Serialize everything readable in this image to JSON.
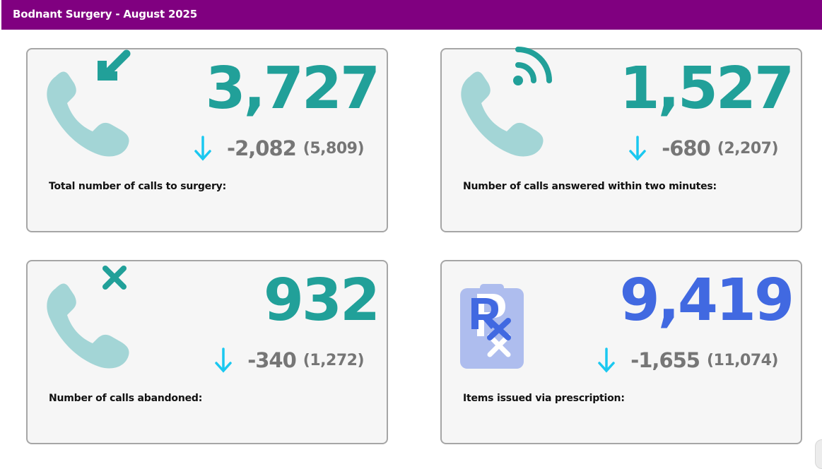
{
  "header": {
    "title": "Bodnant Surgery - August 2025",
    "background": "#800080"
  },
  "colors": {
    "teal": "#21a099",
    "blue": "#4169e1",
    "light_teal": "#a3d5d6",
    "arrow_cyan": "#1ac8f0",
    "grey_text": "#767676"
  },
  "cards": [
    {
      "value": "3,727",
      "change": "-2,082",
      "previous": "(5,809)",
      "label": "Total number of calls to surgery:",
      "icon": "incoming-call-icon",
      "trend": "down"
    },
    {
      "value": "1,527",
      "change": "-680",
      "previous": "(2,207)",
      "label": "Number of calls answered within two minutes:",
      "icon": "call-answered-signal-icon",
      "trend": "down"
    },
    {
      "value": "932",
      "change": "-340",
      "previous": "(1,272)",
      "label": "Number of calls abandoned:",
      "icon": "call-abandoned-icon",
      "trend": "down"
    },
    {
      "value": "9,419",
      "change": "-1,655",
      "previous": "(11,074)",
      "label": "Items issued via prescription:",
      "icon": "prescription-icon",
      "trend": "down"
    }
  ]
}
